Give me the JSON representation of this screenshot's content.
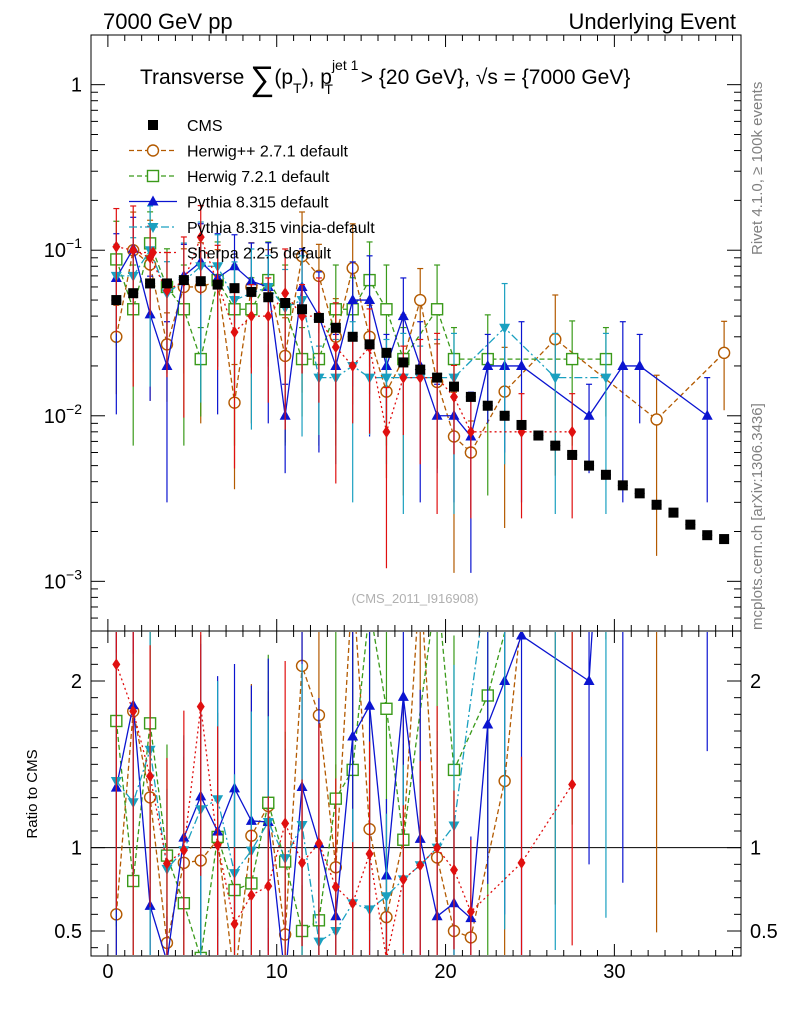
{
  "header": {
    "left": "7000 GeV pp",
    "right": "Underlying Event"
  },
  "side": {
    "rivet": "Rivet 4.1.0, ≥ 100k events",
    "mcplots": "mcplots.cern.ch [arXiv:1306.3436]"
  },
  "chart_data": {
    "type": "scatter",
    "title": "Transverse ∑(pT), pT jet 1 > {20 GeV}, √s = {7000 GeV}",
    "title_parts": {
      "a": "Transverse ",
      "sum": "∑",
      "b": "(p",
      "sub1": "T",
      "c": "), p",
      "sup2": "jet 1",
      "sub2": "T",
      "d": " > {20 GeV}, ",
      "sqrt": "√",
      "e": "s = {7000 GeV}"
    },
    "watermark": "(CMS_2011_I916908)",
    "xlim": [
      -1,
      37.5
    ],
    "xticks": [
      0,
      10,
      20,
      30
    ],
    "xticklabels": [
      "0",
      "10",
      "20",
      "30"
    ],
    "main_ylim_log10": [
      -3.3,
      0.3
    ],
    "main_yticks_log10": [
      0,
      -1,
      -2,
      -3
    ],
    "main_yticklabels": [
      "1",
      "10−1",
      "10−2",
      "10−3"
    ],
    "ratio_ylabel": "Ratio to CMS",
    "ratio_ylim": [
      0.35,
      2.3
    ],
    "ratio_yticks": [
      0.5,
      1,
      2
    ],
    "ratio_yticklabels": [
      "0.5",
      "1",
      "2"
    ],
    "x": [
      0.5,
      1.5,
      2.5,
      3.5,
      4.5,
      5.5,
      6.5,
      7.5,
      8.5,
      9.5,
      10.5,
      11.5,
      12.5,
      13.5,
      14.5,
      15.5,
      16.5,
      17.5,
      18.5,
      19.5,
      20.5,
      21.5,
      22.5,
      23.5,
      24.5,
      25.5,
      26.5,
      27.5,
      28.5,
      29.5,
      30.5,
      31.5,
      32.5,
      33.5,
      34.5,
      35.5,
      36.5
    ],
    "cms": [
      0.05,
      0.055,
      0.063,
      0.063,
      0.066,
      0.065,
      0.062,
      0.059,
      0.056,
      0.052,
      0.048,
      0.044,
      0.039,
      0.034,
      0.03,
      0.027,
      0.024,
      0.021,
      0.019,
      0.017,
      0.015,
      0.013,
      0.0115,
      0.01,
      0.0088,
      0.0076,
      0.0066,
      0.0058,
      0.005,
      0.0044,
      0.0038,
      0.0034,
      0.0029,
      0.0026,
      0.0022,
      0.0019,
      0.0018
    ],
    "series": [
      {
        "name": "Herwig++ 2.7.1 default",
        "style": "dash",
        "marker": "open-circle",
        "color": "#b35a00",
        "values": [
          0.03,
          0.1,
          0.082,
          0.027,
          0.06,
          0.06,
          0.065,
          0.012,
          0.06,
          0.065,
          0.023,
          0.092,
          0.07,
          0.03,
          0.078,
          0.03,
          0.014,
          0.022,
          0.05,
          0.016,
          0.0075,
          0.006,
          null,
          0.014,
          null,
          null,
          0.029,
          null,
          null,
          null,
          null,
          null,
          0.0095,
          null,
          null,
          null,
          0.024
        ]
      },
      {
        "name": "Herwig 7.2.1 default",
        "style": "dash",
        "marker": "open-square",
        "color": "#3a9a1a",
        "values": [
          0.088,
          0.044,
          0.11,
          0.06,
          0.044,
          0.022,
          0.066,
          0.044,
          0.044,
          0.066,
          0.044,
          0.022,
          0.022,
          0.044,
          0.044,
          0.066,
          0.044,
          0.022,
          null,
          0.044,
          0.022,
          null,
          0.022,
          null,
          null,
          null,
          null,
          0.022,
          null,
          0.022,
          null,
          null,
          null,
          null,
          null,
          null,
          null
        ]
      },
      {
        "name": "Pythia 8.315 default",
        "style": "solid",
        "marker": "triangle-up",
        "color": "#0b14d0",
        "values": [
          0.068,
          0.102,
          0.041,
          0.02,
          0.07,
          0.085,
          0.068,
          0.08,
          0.065,
          0.06,
          0.01,
          0.06,
          0.04,
          0.02,
          0.05,
          0.05,
          0.02,
          0.04,
          0.02,
          0.01,
          0.01,
          0.0075,
          0.02,
          0.02,
          0.02,
          null,
          null,
          null,
          0.01,
          null,
          0.02,
          0.02,
          null,
          null,
          null,
          0.01,
          null
        ]
      },
      {
        "name": "Pythia 8.315 vincia-default",
        "style": "dashdot",
        "marker": "triangle-down",
        "color": "#1aa0c0",
        "values": [
          0.07,
          0.07,
          0.1,
          0.055,
          0.065,
          0.08,
          0.08,
          0.05,
          0.055,
          0.06,
          0.045,
          0.05,
          0.017,
          0.017,
          0.02,
          0.017,
          0.017,
          0.017,
          0.017,
          0.017,
          0.017,
          null,
          null,
          0.034,
          null,
          null,
          0.017,
          null,
          null,
          0.017,
          null,
          null,
          null,
          null,
          null,
          null,
          null
        ]
      },
      {
        "name": "Sherpa 2.2.5 default",
        "style": "dot",
        "marker": "diamond",
        "color": "#e01010",
        "values": [
          0.105,
          0.1,
          0.09,
          0.057,
          0.065,
          0.12,
          0.063,
          0.032,
          0.04,
          0.04,
          0.055,
          0.04,
          0.04,
          0.026,
          0.02,
          0.026,
          0.008,
          0.017,
          0.017,
          0.017,
          0.013,
          0.008,
          null,
          null,
          0.008,
          null,
          null,
          0.008,
          null,
          null,
          null,
          null,
          null,
          null,
          null,
          null,
          null
        ]
      }
    ],
    "legend": {
      "cms_label": "CMS",
      "placement": "top-left"
    }
  }
}
